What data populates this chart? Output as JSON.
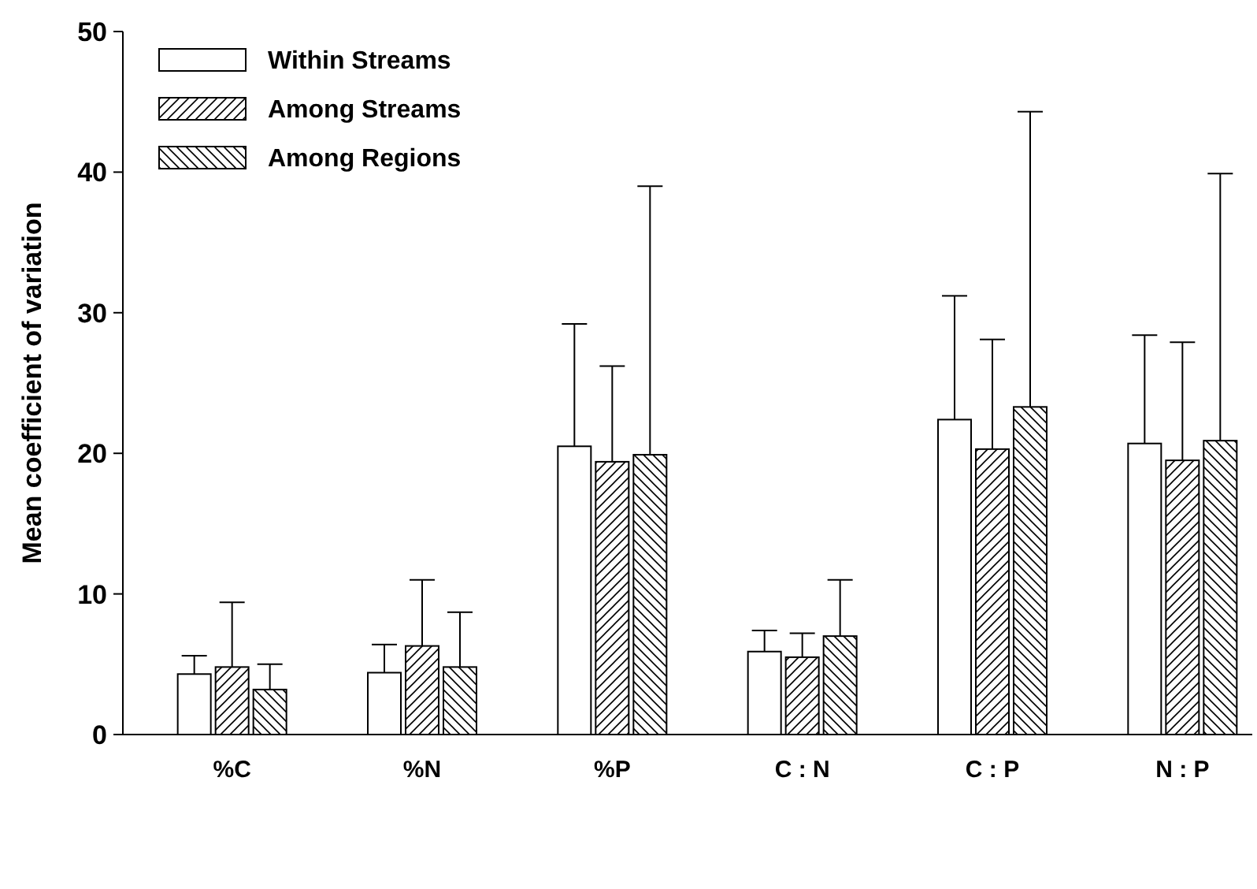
{
  "chart_data": {
    "type": "bar",
    "ylabel": "Mean coefficient of variation",
    "categories": [
      "%C",
      "%N",
      "%P",
      "C : N",
      "C : P",
      "N : P"
    ],
    "series": [
      {
        "name": "Within Streams",
        "color": "#ffffff",
        "values": [
          4.3,
          4.4,
          20.5,
          5.9,
          22.4,
          20.7
        ],
        "errors": [
          [
            4.3,
            5.6
          ],
          [
            4.4,
            6.4
          ],
          [
            20.5,
            29.2
          ],
          [
            5.9,
            7.4
          ],
          [
            22.4,
            31.2
          ],
          [
            20.7,
            28.4
          ]
        ]
      },
      {
        "name": "Among Streams",
        "color": "#000000",
        "values": [
          4.8,
          6.3,
          19.4,
          5.5,
          20.3,
          19.5
        ],
        "errors": [
          [
            4.8,
            9.4
          ],
          [
            6.3,
            11.0
          ],
          [
            19.4,
            26.2
          ],
          [
            5.5,
            7.2
          ],
          [
            20.3,
            28.1
          ],
          [
            19.5,
            27.9
          ]
        ]
      },
      {
        "name": "Among Regions",
        "color": "#000000",
        "values": [
          3.2,
          4.8,
          19.9,
          7.0,
          23.3,
          20.9
        ],
        "errors": [
          [
            3.2,
            5.0
          ],
          [
            4.8,
            8.7
          ],
          [
            19.9,
            39.0
          ],
          [
            7.0,
            11.0
          ],
          [
            23.3,
            44.3
          ],
          [
            20.9,
            39.9
          ]
        ]
      }
    ],
    "ylim": [
      0,
      50
    ],
    "yticks": [
      0,
      10,
      20,
      30,
      40,
      50
    ],
    "legend": "top left"
  }
}
